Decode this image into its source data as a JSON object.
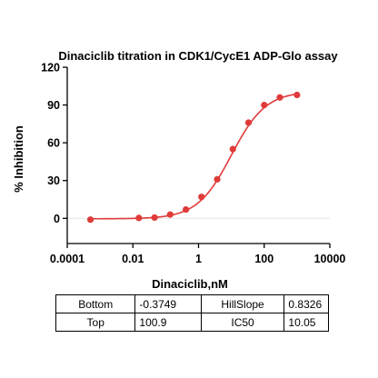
{
  "chart_data": {
    "type": "scatter",
    "title": "Dinaciclib titration in CDK1/CycE1 ADP-Glo assay",
    "xlabel": "Dinaciclib,nM",
    "ylabel": "% Inhibition",
    "xscale": "log",
    "xlim": [
      0.0001,
      10000
    ],
    "ylim": [
      -20,
      120
    ],
    "x_ticks": [
      0.0001,
      0.01,
      1,
      100,
      10000
    ],
    "x_tick_labels": [
      "0.0001",
      "0.01",
      "1",
      "100",
      "10000"
    ],
    "y_ticks": [
      0,
      30,
      60,
      90,
      120
    ],
    "y_tick_labels": [
      "0",
      "30",
      "60",
      "90",
      "120"
    ],
    "zero_line": true,
    "series": [
      {
        "color": "#e03a3a",
        "x": [
          0.00051,
          0.0152,
          0.0457,
          0.137,
          0.412,
          1.23,
          3.7,
          11.1,
          33.3,
          100,
          300,
          1000
        ],
        "y": [
          -1,
          0.3,
          0.6,
          3,
          7,
          17,
          31,
          55,
          76,
          90,
          96,
          98
        ]
      }
    ],
    "fit": {
      "model": "four-parameter logistic",
      "color": "#e03a3a",
      "bottom": -0.3749,
      "top": 100.9,
      "ic50": 10.05,
      "hillslope": 0.8326
    },
    "params_table": [
      [
        "Bottom",
        "-0.3749",
        "HillSlope",
        "0.8326"
      ],
      [
        "Top",
        "100.9",
        "IC50",
        "10.05"
      ]
    ]
  }
}
